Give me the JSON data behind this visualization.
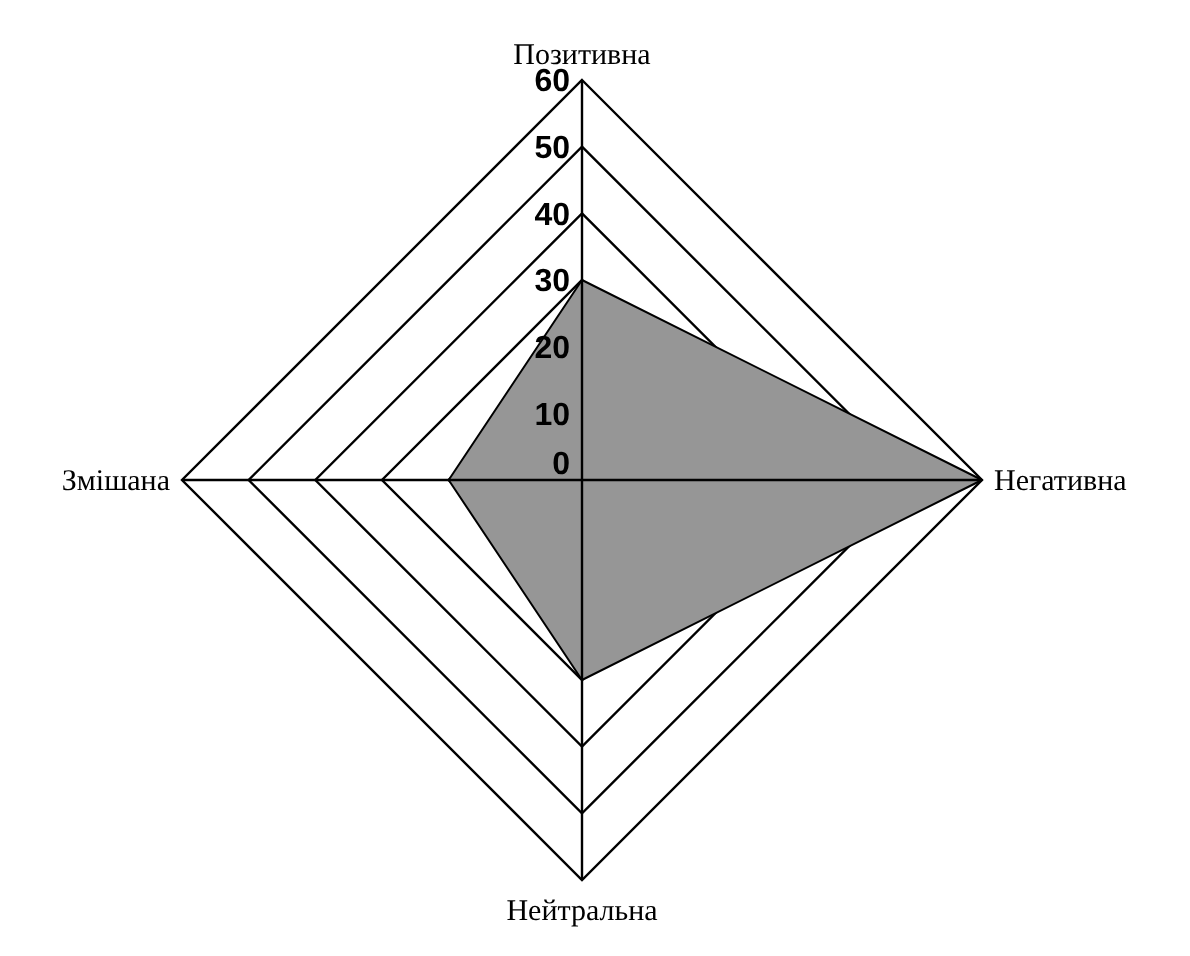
{
  "chart_data": {
    "type": "radar",
    "categories": [
      "Позитивна",
      "Негативна",
      "Нейтральна",
      "Змішана"
    ],
    "series": [
      {
        "color": "#969696",
        "values": [
          30,
          60,
          30,
          20
        ]
      }
    ],
    "ylim": [
      0,
      60
    ],
    "yticks": [
      0,
      10,
      20,
      30,
      40,
      50,
      60
    ],
    "grid": true
  }
}
